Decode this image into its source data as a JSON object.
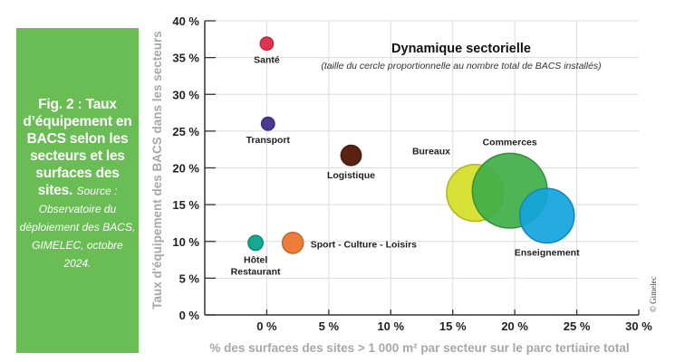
{
  "caption": {
    "title": "Fig. 2 : Taux d’équipement en BACS selon les secteurs et les surfaces des sites.",
    "source": "Source : Observatoire du déploiement des BACS, GIMELEC, octobre 2024."
  },
  "credit": "© Gimelec",
  "chart_data": {
    "type": "scatter",
    "subtype": "bubble",
    "title": "Dynamique sectorielle",
    "subtitle": "(taille du cercle proportionnelle au nombre total de BACS installés)",
    "xlabel": "% des surfaces des sites > 1 000 m² par secteur sur le parc tertiaire total",
    "ylabel": "Taux d'équipement des BACS dans les secteurs",
    "xlim": [
      -5,
      30
    ],
    "ylim": [
      0,
      40
    ],
    "xticks": [
      0,
      5,
      10,
      15,
      20,
      25,
      30
    ],
    "xtick_labels": [
      "0 %",
      "5 %",
      "10 %",
      "15 %",
      "20 %",
      "25 %",
      "30 %"
    ],
    "yticks": [
      0,
      5,
      10,
      15,
      20,
      25,
      30,
      35,
      40
    ],
    "ytick_labels": [
      "0 %",
      "5 %",
      "10 %",
      "15 %",
      "20 %",
      "25 %",
      "30 %",
      "35 %",
      "40 %"
    ],
    "grid": true,
    "size_note": "relative bubble size (proportional to total BACS installed)",
    "points": [
      {
        "label": "Santé",
        "x": 0.0,
        "y": 36.9,
        "size": 1.0,
        "color": "#e0334f",
        "label_pos": "below"
      },
      {
        "label": "Transport",
        "x": 0.1,
        "y": 26.0,
        "size": 1.0,
        "color": "#4b3a94",
        "label_pos": "below"
      },
      {
        "label": "Logistique",
        "x": 6.8,
        "y": 21.7,
        "size": 2.4,
        "color": "#5a2212",
        "label_pos": "below"
      },
      {
        "label": "Sport - Culture - Loisirs",
        "x": 2.1,
        "y": 9.8,
        "size": 2.6,
        "color": "#ee7d3a",
        "label_pos": "right"
      },
      {
        "label": "Hôtel\nRestaurant",
        "x": -0.9,
        "y": 9.8,
        "size": 1.3,
        "color": "#14a990",
        "label_pos": "below"
      },
      {
        "label": "Bureaux",
        "x": 16.8,
        "y": 16.6,
        "size": 19.0,
        "color": "#d5de25",
        "label_pos": "above-left"
      },
      {
        "label": "Commerces",
        "x": 19.6,
        "y": 16.9,
        "size": 33.0,
        "color": "#3faf48",
        "label_pos": "above"
      },
      {
        "label": "Enseignement",
        "x": 22.6,
        "y": 13.5,
        "size": 17.5,
        "color": "#12a4dc",
        "label_pos": "below"
      }
    ]
  }
}
